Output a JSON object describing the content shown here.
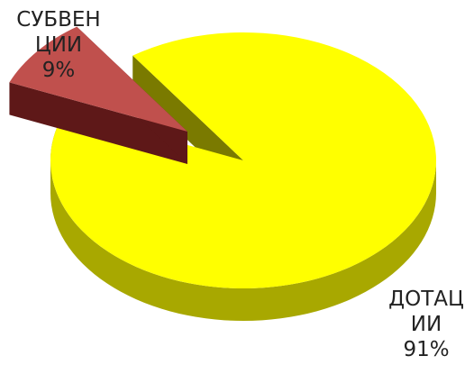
{
  "chart_data": {
    "type": "pie",
    "style": "3d-exploded",
    "slices": [
      {
        "label_lines": [
          "ДОТАЦ",
          "ИИ",
          "91%"
        ],
        "value": 91,
        "color": "#ffff00",
        "side_color": "#a8a800"
      },
      {
        "label_lines": [
          "СУБВЕН",
          "ЦИИ",
          "9%"
        ],
        "value": 9,
        "color": "#c0504d",
        "side_color": "#5e1818",
        "exploded": true
      }
    ]
  }
}
